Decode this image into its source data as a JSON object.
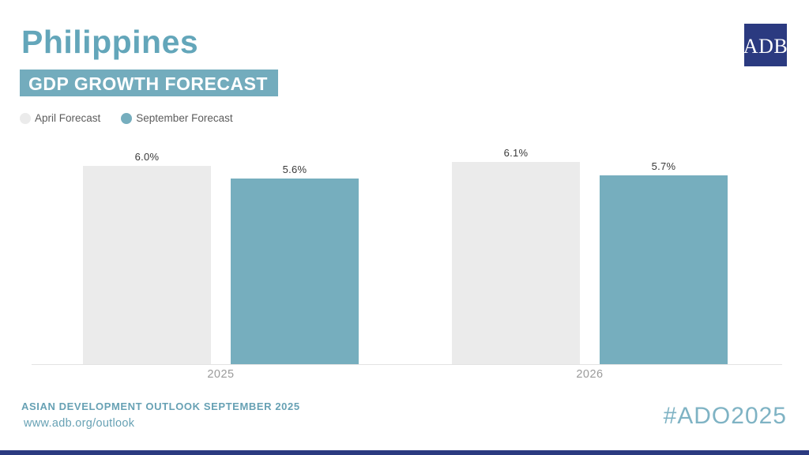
{
  "header": {
    "title": "Philippines",
    "badge": "GDP GROWTH FORECAST",
    "logo_text": "ADB"
  },
  "legend": {
    "items": [
      {
        "label": "April Forecast",
        "color": "#EBEBEB"
      },
      {
        "label": "September Forecast",
        "color": "#76AEBE"
      }
    ]
  },
  "chart_data": {
    "type": "bar",
    "title": "Philippines GDP Growth Forecast",
    "categories": [
      "2025",
      "2026"
    ],
    "series": [
      {
        "name": "April Forecast",
        "values": [
          6.0,
          6.1
        ],
        "labels": [
          "6.0%",
          "6.1%"
        ],
        "color": "#EBEBEB"
      },
      {
        "name": "September Forecast",
        "values": [
          5.6,
          5.7
        ],
        "labels": [
          "5.6%",
          "5.7%"
        ],
        "color": "#76AEBE"
      }
    ],
    "value_suffix": "%",
    "ylim": [
      0,
      6.7
    ],
    "grid": false,
    "legend_position": "top-left",
    "data_labels": true
  },
  "footer": {
    "line1": "ASIAN DEVELOPMENT OUTLOOK SEPTEMBER 2025",
    "line2": "www.adb.org/outlook",
    "hashtag": "#ADO2025"
  },
  "colors": {
    "title_teal": "#63A6BA",
    "badge_teal": "#73ACBD",
    "bar_teal": "#76AEBE",
    "bar_gray": "#EBEBEB",
    "logo_navy": "#2B3A80",
    "accent_bar_navy": "#2B3A80",
    "footer_teal": "#67A1B4",
    "hashtag_teal": "#7FB3C4",
    "axis_line": "#e3e3e3",
    "data_label": "#3a3a3a",
    "x_label_gray": "#9b9b9b"
  }
}
